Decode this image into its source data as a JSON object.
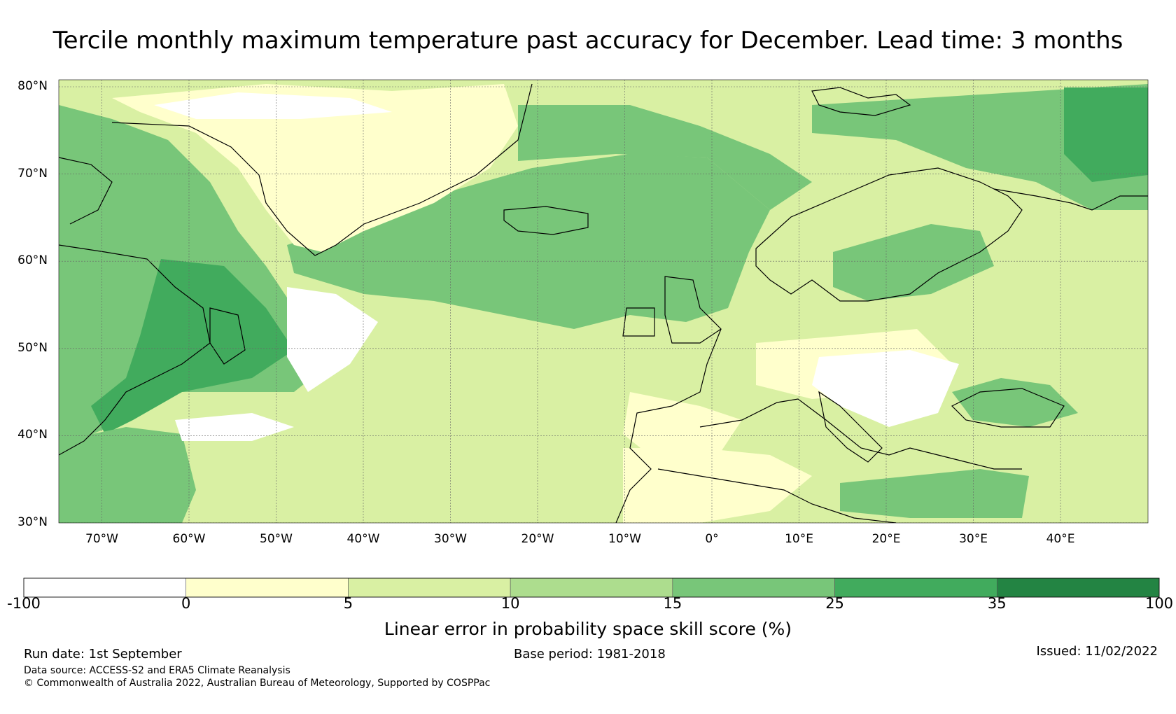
{
  "title": "Tercile monthly maximum temperature past accuracy for December. Lead time: 3 months",
  "map": {
    "region": "North Atlantic and Europe",
    "lon_range": [
      -75,
      50
    ],
    "lat_range": [
      30,
      80
    ],
    "grid": true,
    "lat_ticks": [
      {
        "value": 80,
        "label": "80°N"
      },
      {
        "value": 70,
        "label": "70°N"
      },
      {
        "value": 60,
        "label": "60°N"
      },
      {
        "value": 50,
        "label": "50°N"
      },
      {
        "value": 40,
        "label": "40°N"
      },
      {
        "value": 30,
        "label": "30°N"
      }
    ],
    "lon_ticks": [
      {
        "value": -70,
        "label": "70°W"
      },
      {
        "value": -60,
        "label": "60°W"
      },
      {
        "value": -50,
        "label": "50°W"
      },
      {
        "value": -40,
        "label": "40°W"
      },
      {
        "value": -30,
        "label": "30°W"
      },
      {
        "value": -20,
        "label": "20°W"
      },
      {
        "value": -10,
        "label": "10°W"
      },
      {
        "value": 0,
        "label": "0°"
      },
      {
        "value": 10,
        "label": "10°E"
      },
      {
        "value": 20,
        "label": "20°E"
      },
      {
        "value": 30,
        "label": "30°E"
      },
      {
        "value": 40,
        "label": "40°E"
      }
    ]
  },
  "colorbar": {
    "bins": [
      {
        "from": -100,
        "to": 0,
        "color": "#ffffff"
      },
      {
        "from": 0,
        "to": 5,
        "color": "#ffffcc"
      },
      {
        "from": 5,
        "to": 10,
        "color": "#d9f0a3"
      },
      {
        "from": 10,
        "to": 15,
        "color": "#addd8e"
      },
      {
        "from": 15,
        "to": 25,
        "color": "#78c679"
      },
      {
        "from": 25,
        "to": 35,
        "color": "#41ab5d"
      },
      {
        "from": 35,
        "to": 100,
        "color": "#238443"
      }
    ],
    "tick_labels": [
      "-100",
      "0",
      "5",
      "10",
      "15",
      "25",
      "35",
      "100"
    ],
    "label": "Linear error in probability space skill score (%)"
  },
  "footer": {
    "run_date": "Run date: 1st September",
    "base_period": "Base period: 1981-2018",
    "issued": "Issued: 11/02/2022",
    "data_source": "Data source: ACCESS-S2 and ERA5 Climate Reanalysis",
    "copyright": "© Commonwealth of Australia 2022, Australian Bureau of Meteorology, Supported by COSPPac"
  }
}
